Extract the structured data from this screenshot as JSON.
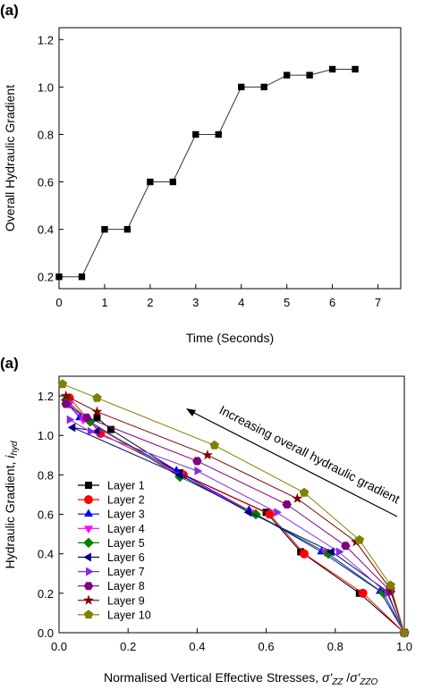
{
  "chart_data": [
    {
      "type": "line",
      "panel_label": "(a)",
      "xlabel": "Time (Seconds)",
      "ylabel": "Overall Hydraulic Gradient",
      "xlim": [
        0,
        7.5
      ],
      "ylim": [
        0.15,
        1.25
      ],
      "xticks": [
        0,
        1,
        2,
        3,
        4,
        5,
        6,
        7
      ],
      "yticks": [
        0.2,
        0.4,
        0.6,
        0.8,
        1.0,
        1.2
      ],
      "xtick_labels": [
        "0",
        "1",
        "2",
        "3",
        "4",
        "5",
        "6",
        "7"
      ],
      "ytick_labels": [
        "0.2",
        "0.4",
        "0.6",
        "0.8",
        "1.0",
        "1.2"
      ],
      "grid": false,
      "marker": "square",
      "series": [
        {
          "x": [
            0,
            0.5,
            1,
            1.5,
            2,
            2.5,
            3,
            3.5,
            4,
            4.5,
            5,
            5.5,
            6,
            6.5
          ],
          "y": [
            0.2,
            0.2,
            0.4,
            0.4,
            0.6,
            0.6,
            0.8,
            0.8,
            1.0,
            1.0,
            1.05,
            1.05,
            1.075,
            1.075
          ]
        }
      ]
    },
    {
      "type": "line",
      "panel_label": "(a)",
      "xlabel": "Normalised Vertical Effective Stresses, σ'zz /σ'zzo",
      "ylabel": "Hydraulic Gradient, ihyd",
      "xlim": [
        0,
        1
      ],
      "ylim": [
        0,
        1.3
      ],
      "xticks": [
        0,
        0.2,
        0.4,
        0.6,
        0.8,
        1.0
      ],
      "yticks": [
        0,
        0.2,
        0.4,
        0.6,
        0.8,
        1.0,
        1.2
      ],
      "xtick_labels": [
        "0.0",
        "0.2",
        "0.4",
        "0.6",
        "0.8",
        "1.0"
      ],
      "ytick_labels": [
        "0.0",
        "0.2",
        "0.4",
        "0.6",
        "0.8",
        "1.0",
        "1.2"
      ],
      "grid": false,
      "legend_position": "bottom-left",
      "annotation": "Increasing overall hydraulic gradient",
      "series": [
        {
          "name": "Layer 1",
          "color": "#000000",
          "marker": "square",
          "x": [
            1.0,
            0.87,
            0.7,
            0.6,
            0.35,
            0.15,
            0.11
          ],
          "y": [
            0.0,
            0.2,
            0.41,
            0.61,
            0.81,
            1.03,
            1.09
          ]
        },
        {
          "name": "Layer 2",
          "color": "#ff0000",
          "marker": "circle",
          "x": [
            1.0,
            0.88,
            0.71,
            0.61,
            0.36,
            0.12,
            0.03
          ],
          "y": [
            0.0,
            0.2,
            0.4,
            0.6,
            0.8,
            1.01,
            1.19
          ]
        },
        {
          "name": "Layer 3",
          "color": "#0000ff",
          "marker": "triangle-up",
          "x": [
            1.0,
            0.93,
            0.76,
            0.55,
            0.34,
            0.06,
            0.02
          ],
          "y": [
            0.0,
            0.21,
            0.41,
            0.62,
            0.82,
            1.09,
            1.17
          ]
        },
        {
          "name": "Layer 4",
          "color": "#ff00ff",
          "marker": "triangle-down",
          "x": [
            1.0,
            0.94,
            0.77,
            0.56,
            0.35,
            0.07,
            0.03
          ],
          "y": [
            0.0,
            0.2,
            0.41,
            0.61,
            0.8,
            1.08,
            1.16
          ]
        },
        {
          "name": "Layer 5",
          "color": "#008000",
          "marker": "diamond",
          "x": [
            1.0,
            0.94,
            0.78,
            0.57,
            0.35,
            0.09,
            0.02
          ],
          "y": [
            0.0,
            0.2,
            0.4,
            0.6,
            0.79,
            1.07,
            1.18
          ]
        },
        {
          "name": "Layer 6",
          "color": "#000080",
          "marker": "triangle-left",
          "x": [
            1.0,
            0.95,
            0.79,
            0.55,
            0.35,
            0.04,
            0.11
          ],
          "y": [
            0.0,
            0.21,
            0.41,
            0.61,
            0.8,
            1.04,
            1.02
          ]
        },
        {
          "name": "Layer 7",
          "color": "#8a2be2",
          "marker": "triangle-right",
          "x": [
            1.0,
            0.95,
            0.81,
            0.63,
            0.4,
            0.09,
            0.03
          ],
          "y": [
            0.0,
            0.2,
            0.41,
            0.61,
            0.82,
            1.02,
            1.08
          ]
        },
        {
          "name": "Layer 8",
          "color": "#800080",
          "marker": "hexagon",
          "x": [
            1.0,
            0.96,
            0.83,
            0.66,
            0.4,
            0.08,
            0.02
          ],
          "y": [
            0.0,
            0.21,
            0.44,
            0.65,
            0.87,
            1.09,
            1.16
          ]
        },
        {
          "name": "Layer 9",
          "color": "#800000",
          "marker": "star",
          "x": [
            1.0,
            0.96,
            0.86,
            0.69,
            0.43,
            0.11,
            0.02
          ],
          "y": [
            0.0,
            0.22,
            0.46,
            0.68,
            0.9,
            1.12,
            1.2
          ]
        },
        {
          "name": "Layer 10",
          "color": "#808000",
          "marker": "pentagon",
          "x": [
            1.0,
            0.96,
            0.87,
            0.71,
            0.45,
            0.11,
            0.01
          ],
          "y": [
            0.0,
            0.24,
            0.47,
            0.71,
            0.95,
            1.19,
            1.26
          ]
        }
      ]
    }
  ]
}
